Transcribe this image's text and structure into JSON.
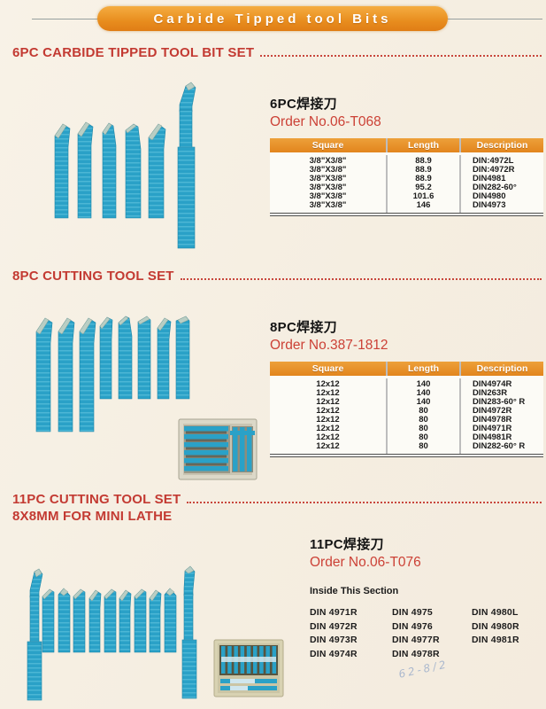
{
  "banner": {
    "title": "Carbide Tipped tool Bits"
  },
  "colors": {
    "accent_orange": "#E8901E",
    "heading_red": "#C33A32",
    "tool_blue": "#2AA1C7",
    "carbide_tip": "#B9CEC4"
  },
  "sections": {
    "s6pc": {
      "heading": "6PC CARBIDE TIPPED TOOL BIT SET",
      "title_cn": "6PC焊接刀",
      "order_no": "Order No.06-T068",
      "table": {
        "headers": [
          "Square",
          "Length",
          "Description"
        ],
        "rows": [
          [
            "3/8\"X3/8\"",
            "88.9",
            "DIN:4972L"
          ],
          [
            "3/8\"X3/8\"",
            "88.9",
            "DIN:4972R"
          ],
          [
            "3/8\"X3/8\"",
            "88.9",
            "DIN4981"
          ],
          [
            "3/8\"X3/8\"",
            "95.2",
            "DIN282-60°"
          ],
          [
            "3/8\"X3/8\"",
            "101.6",
            "DIN4980"
          ],
          [
            "3/8\"X3/8\"",
            "146",
            "DIN4973"
          ]
        ]
      }
    },
    "s8pc": {
      "heading": "8PC CUTTING TOOL SET",
      "title_cn": "8PC焊接刀",
      "order_no": "Order No.387-1812",
      "table": {
        "headers": [
          "Square",
          "Length",
          "Description"
        ],
        "rows": [
          [
            "12x12",
            "140",
            "DIN4974R"
          ],
          [
            "12x12",
            "140",
            "DIN263R"
          ],
          [
            "12x12",
            "140",
            "DIN283-60°  R"
          ],
          [
            "12x12",
            "80",
            "DIN4972R"
          ],
          [
            "12x12",
            "80",
            "DIN4978R"
          ],
          [
            "12x12",
            "80",
            "DIN4971R"
          ],
          [
            "12x12",
            "80",
            "DIN4981R"
          ],
          [
            "12x12",
            "80",
            "DIN282-60°  R"
          ]
        ]
      }
    },
    "s11pc": {
      "heading": "11PC CUTTING TOOL SET",
      "heading_line2": "8X8MM FOR MINI LATHE",
      "title_cn": "11PC焊接刀",
      "order_no": "Order No.06-T076",
      "inside_label": "Inside This Section",
      "din_columns": [
        [
          "DIN 4971R",
          "DIN 4972R",
          "DIN 4973R",
          "DIN 4974R"
        ],
        [
          "DIN 4975",
          "DIN 4976",
          "DIN 4977R",
          "DIN 4978R"
        ],
        [
          "DIN 4980L",
          "DIN 4980R",
          "DIN 4981R"
        ]
      ]
    }
  },
  "handwriting": {
    "text": "62-8/2"
  }
}
